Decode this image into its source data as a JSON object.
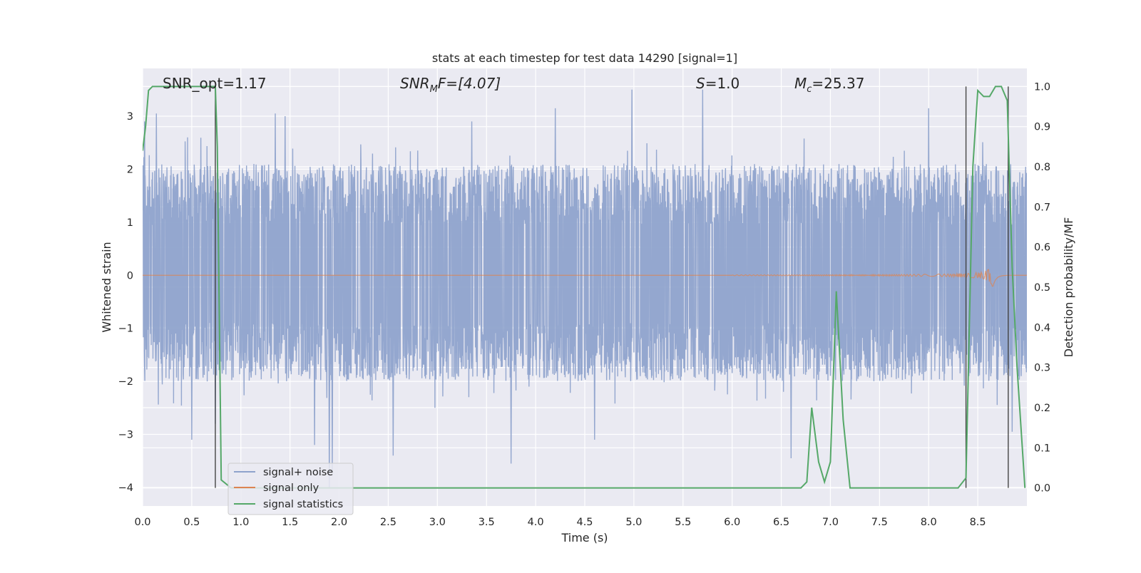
{
  "chart_data": {
    "type": "line",
    "title": "stats at each timestep for test data 14290 [signal=1]",
    "xlabel": "Time (s)",
    "ylabel_left": "Whitened strain",
    "ylabel_right": "Detection probability/MF",
    "xlim": [
      0,
      9.0
    ],
    "ylim_left": [
      -4.35,
      3.9
    ],
    "ylim_right": [
      -0.045,
      1.045
    ],
    "x_ticks": [
      "0.0",
      "0.5",
      "1.0",
      "1.5",
      "2.0",
      "2.5",
      "3.0",
      "3.5",
      "4.0",
      "4.5",
      "5.0",
      "5.5",
      "6.0",
      "6.5",
      "7.0",
      "7.5",
      "8.0",
      "8.5"
    ],
    "y_left_ticks": [
      "3",
      "2",
      "1",
      "0",
      "−1",
      "−2",
      "−3",
      "−4"
    ],
    "y_right_ticks": [
      "1.0",
      "0.9",
      "0.8",
      "0.7",
      "0.6",
      "0.5",
      "0.4",
      "0.3",
      "0.2",
      "0.1",
      "0.0"
    ],
    "grid": true,
    "legend_position": "lower-left",
    "annotations": {
      "snr_opt": "SNR_opt=1.17",
      "snr_mf_main": "SNR",
      "snr_mf_sub": "M",
      "snr_mf_rest": "F=[4.07]",
      "s_main": "S",
      "s_rest": "=1.0",
      "mc_main": "M",
      "mc_sub": "c",
      "mc_rest": "=25.37"
    },
    "vertical_lines_x": [
      0.74,
      8.38,
      8.81
    ],
    "series": [
      {
        "name": "signal+ noise",
        "color": "#8fa3cc",
        "kind": "noise",
        "typical_range": [
          -2.0,
          2.1
        ],
        "peak_max": 3.55,
        "peak_min": -4.0,
        "peaks": [
          [
            0.02,
            2.9
          ],
          [
            0.14,
            3.05
          ],
          [
            0.5,
            -3.1
          ],
          [
            0.74,
            -2.8
          ],
          [
            1.35,
            3.05
          ],
          [
            1.45,
            3.0
          ],
          [
            1.75,
            -3.2
          ],
          [
            1.9,
            -4.0
          ],
          [
            1.93,
            -3.7
          ],
          [
            2.55,
            -3.4
          ],
          [
            3.35,
            2.9
          ],
          [
            3.75,
            -3.55
          ],
          [
            4.2,
            3.15
          ],
          [
            4.6,
            -3.1
          ],
          [
            4.98,
            3.5
          ],
          [
            5.7,
            3.5
          ],
          [
            6.6,
            -3.45
          ],
          [
            8.0,
            3.15
          ],
          [
            8.85,
            -2.95
          ]
        ]
      },
      {
        "name": "signal only",
        "color": "#dd8452",
        "kind": "chirp",
        "flat_value": 0.0,
        "merger_time": 8.65,
        "merger_amplitude": 0.25
      },
      {
        "name": "signal statistics",
        "color": "#55a868",
        "kind": "line",
        "axis": "right",
        "x": [
          0.0,
          0.03,
          0.06,
          0.1,
          0.2,
          0.4,
          0.6,
          0.74,
          0.76,
          0.8,
          0.9,
          1.2,
          2.0,
          3.0,
          4.0,
          5.0,
          6.0,
          6.7,
          6.76,
          6.81,
          6.88,
          6.94,
          7.0,
          7.06,
          7.13,
          7.2,
          7.5,
          8.0,
          8.3,
          8.38,
          8.45,
          8.5,
          8.56,
          8.62,
          8.68,
          8.74,
          8.8,
          8.85,
          8.9,
          8.98
        ],
        "values": [
          0.84,
          0.9,
          0.99,
          1.0,
          1.0,
          1.0,
          1.0,
          1.0,
          0.85,
          0.02,
          0.0,
          0.0,
          0.0,
          0.0,
          0.0,
          0.0,
          0.0,
          0.0,
          0.015,
          0.2,
          0.065,
          0.015,
          0.065,
          0.49,
          0.17,
          0.0,
          0.0,
          0.0,
          0.0,
          0.025,
          0.8,
          0.99,
          0.975,
          0.975,
          1.0,
          1.0,
          0.965,
          0.55,
          0.3,
          0.0
        ]
      }
    ]
  }
}
